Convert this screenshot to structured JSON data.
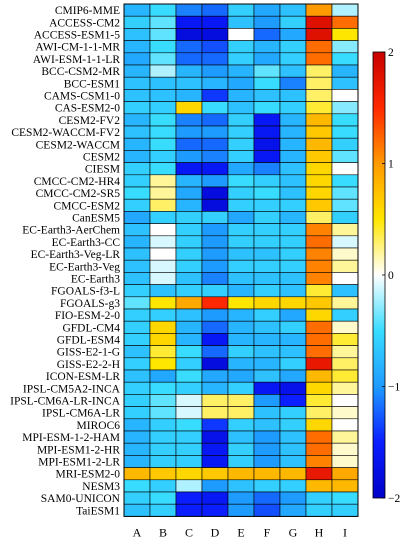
{
  "chart_data": {
    "type": "heatmap",
    "title": "",
    "xlabel": "",
    "ylabel": "",
    "columns": [
      "A",
      "B",
      "C",
      "D",
      "E",
      "F",
      "G",
      "H",
      "I"
    ],
    "rows": [
      "CMIP6-MME",
      "ACCESS-CM2",
      "ACCESS-ESM1-5",
      "AWI-CM-1-1-MR",
      "AWI-ESM-1-1-LR",
      "BCC-CSM2-MR",
      "BCC-ESM1",
      "CAMS-CSM1-0",
      "CAS-ESM2-0",
      "CESM2-FV2",
      "CESM2-WACCM-FV2",
      "CESM2-WACCM",
      "CESM2",
      "CIESM",
      "CMCC-CM2-HR4",
      "CMCC-CM2-SR5",
      "CMCC-ESM2",
      "CanESM5",
      "EC-Earth3-AerChem",
      "EC-Earth3-CC",
      "EC-Earth3-Veg-LR",
      "EC-Earth3-Veg",
      "EC-Earth3",
      "FGOALS-f3-L",
      "FGOALS-g3",
      "FIO-ESM-2-0",
      "GFDL-CM4",
      "GFDL-ESM4",
      "GISS-E2-1-G",
      "GISS-E2-2-H",
      "ICON-ESM-LR",
      "IPSL-CM5A2-INCA",
      "IPSL-CM6A-LR-INCA",
      "IPSL-CM6A-LR",
      "MIROC6",
      "MPI-ESM-1-2-HAM",
      "MPI-ESM1-2-HR",
      "MPI-ESM1-2-LR",
      "MRI-ESM2-0",
      "NESM3",
      "SAM0-UNICON",
      "TaiESM1"
    ],
    "values": [
      [
        -0.8,
        -0.5,
        -1.1,
        -1.2,
        -0.6,
        -0.9,
        -0.7,
        1.0,
        -0.2
      ],
      [
        -0.6,
        -0.4,
        -1.6,
        -1.6,
        -0.7,
        -1.0,
        -0.6,
        1.8,
        1.2
      ],
      [
        -0.7,
        -0.4,
        -1.8,
        -1.8,
        0.0,
        -1.2,
        -0.9,
        1.8,
        0.5
      ],
      [
        -0.8,
        -0.5,
        -1.2,
        -1.3,
        -0.6,
        -0.8,
        -0.6,
        1.2,
        -0.3
      ],
      [
        -0.9,
        -0.4,
        -1.2,
        -1.2,
        -0.6,
        -0.9,
        -0.6,
        1.2,
        -0.5
      ],
      [
        -0.8,
        -0.2,
        -0.8,
        -1.0,
        -0.8,
        -0.4,
        -0.7,
        0.3,
        -0.8
      ],
      [
        -0.7,
        -0.7,
        -0.7,
        -0.8,
        -0.9,
        -0.5,
        -1.1,
        0.3,
        -0.7
      ],
      [
        -0.7,
        -0.7,
        -0.8,
        -1.4,
        -0.8,
        -0.7,
        -0.7,
        0.3,
        0.0
      ],
      [
        -0.6,
        -0.6,
        0.6,
        -0.5,
        -0.7,
        -0.5,
        -0.6,
        0.4,
        -0.3
      ],
      [
        -0.8,
        -0.5,
        -1.1,
        -1.2,
        -0.6,
        -1.6,
        -0.8,
        0.8,
        -0.5
      ],
      [
        -0.7,
        -0.5,
        -1.0,
        -1.0,
        -0.6,
        -1.6,
        -0.8,
        0.7,
        -0.5
      ],
      [
        -0.8,
        -0.5,
        -1.2,
        -1.2,
        -0.6,
        -1.7,
        -0.8,
        0.8,
        -0.6
      ],
      [
        -0.8,
        -0.6,
        -1.0,
        -1.1,
        -0.6,
        -1.6,
        -0.8,
        0.7,
        -0.4
      ],
      [
        -0.6,
        -0.5,
        -1.6,
        -1.6,
        -0.9,
        -1.1,
        -0.7,
        0.6,
        0.0
      ],
      [
        -0.6,
        0.2,
        -0.8,
        -1.0,
        -0.5,
        -0.6,
        -0.7,
        0.6,
        -0.5
      ],
      [
        -0.5,
        0.2,
        -0.9,
        -1.8,
        -0.6,
        -0.5,
        -0.7,
        0.6,
        -0.4
      ],
      [
        -0.6,
        0.3,
        -0.8,
        -1.8,
        -0.6,
        -0.6,
        -0.6,
        0.7,
        -0.4
      ],
      [
        -0.9,
        -0.6,
        -0.6,
        -0.6,
        -0.9,
        -0.6,
        -0.8,
        0.3,
        -0.6
      ],
      [
        -0.7,
        0.0,
        -0.6,
        -1.0,
        -0.6,
        -0.6,
        -0.6,
        1.1,
        0.2
      ],
      [
        -0.8,
        -0.1,
        -0.6,
        -1.0,
        -0.6,
        -0.6,
        -0.6,
        1.2,
        -0.1
      ],
      [
        -0.7,
        0.0,
        -0.6,
        -1.0,
        -0.7,
        -0.7,
        -0.6,
        1.1,
        0.1
      ],
      [
        -0.7,
        -0.1,
        -0.6,
        -1.0,
        -0.6,
        -0.6,
        -0.6,
        1.1,
        0.2
      ],
      [
        -0.7,
        -0.1,
        -0.7,
        -1.1,
        -0.7,
        -0.7,
        -0.7,
        1.1,
        0.0
      ],
      [
        -0.6,
        -0.7,
        -0.6,
        -0.6,
        -0.8,
        -0.6,
        -0.7,
        0.4,
        -0.7
      ],
      [
        -0.4,
        0.5,
        0.9,
        1.5,
        0.5,
        0.6,
        0.6,
        0.7,
        0.2
      ],
      [
        -0.6,
        -0.6,
        -0.7,
        -1.0,
        -0.8,
        -0.6,
        -0.9,
        0.6,
        -0.6
      ],
      [
        -0.6,
        0.6,
        -0.8,
        -1.2,
        -0.8,
        -0.7,
        -0.6,
        1.2,
        0.1
      ],
      [
        -0.6,
        0.6,
        -0.8,
        -1.6,
        -0.8,
        -0.8,
        -0.8,
        1.2,
        0.4
      ],
      [
        -0.7,
        0.4,
        -0.5,
        -1.2,
        -0.6,
        -0.7,
        -0.7,
        1.2,
        0.2
      ],
      [
        -0.6,
        0.5,
        -0.6,
        -1.8,
        -0.8,
        -0.8,
        -0.6,
        1.7,
        0.3
      ],
      [
        -0.7,
        -0.9,
        -0.5,
        -0.9,
        -0.9,
        -0.7,
        -0.9,
        0.8,
        0.4
      ],
      [
        -0.6,
        -0.5,
        -0.6,
        -0.8,
        -0.6,
        -1.6,
        -1.7,
        0.6,
        0.2
      ],
      [
        -0.6,
        -0.4,
        -0.1,
        0.3,
        0.3,
        -1.0,
        -1.5,
        0.4,
        0.0
      ],
      [
        -0.6,
        -0.4,
        -0.1,
        0.3,
        0.3,
        -0.7,
        -0.6,
        0.3,
        0.1
      ],
      [
        -0.8,
        -0.6,
        -0.5,
        -1.4,
        -0.6,
        -0.7,
        -0.6,
        0.6,
        0.0
      ],
      [
        -0.8,
        -0.6,
        -0.6,
        -1.7,
        -0.7,
        -1.0,
        -0.7,
        1.2,
        0.2
      ],
      [
        -0.8,
        -0.6,
        -0.6,
        -1.6,
        -0.6,
        -1.0,
        -0.7,
        1.2,
        0.1
      ],
      [
        -0.8,
        -0.6,
        -0.6,
        -1.6,
        -0.6,
        -1.0,
        -0.7,
        1.1,
        0.1
      ],
      [
        0.8,
        0.7,
        0.6,
        0.7,
        0.8,
        0.8,
        0.8,
        1.7,
        0.9
      ],
      [
        -0.5,
        -0.6,
        -0.2,
        -1.0,
        -0.7,
        -0.6,
        -0.6,
        0.8,
        0.8
      ],
      [
        -0.6,
        -0.5,
        -1.5,
        -1.6,
        -1.0,
        -1.2,
        -1.0,
        -0.6,
        -0.5
      ],
      [
        -0.7,
        -0.6,
        -1.5,
        -1.5,
        -1.0,
        -1.3,
        -0.9,
        -0.6,
        -0.6
      ]
    ],
    "colorbar": {
      "min": -2,
      "max": 2,
      "ticks": [
        2,
        1,
        0,
        -1,
        -2
      ],
      "tick_labels": [
        "2",
        "1",
        "0",
        "−1",
        "−2"
      ]
    },
    "colormap": [
      "#0000c8",
      "#0a1eff",
      "#1e9bff",
      "#37dcff",
      "#ffffff",
      "#ffe600",
      "#ff9a00",
      "#ff2800",
      "#c80000"
    ]
  }
}
